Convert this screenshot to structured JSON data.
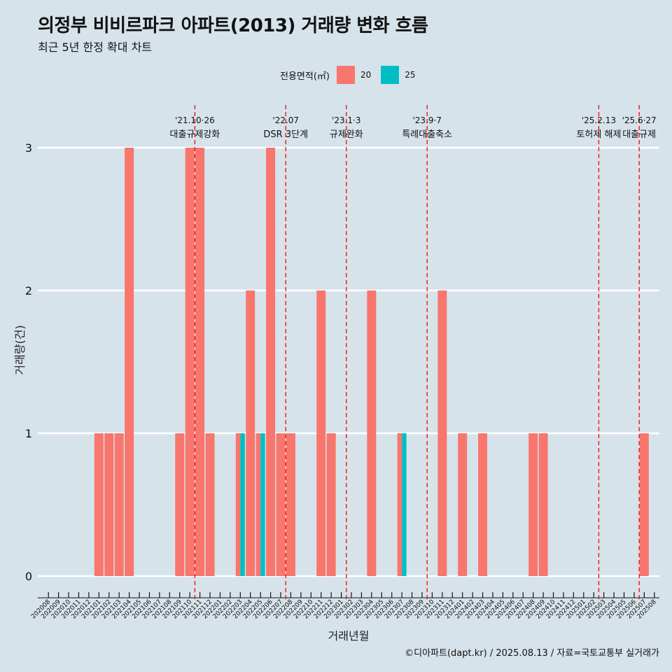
{
  "header": {
    "title": "의정부 비비르파크 아파트(2013) 거래량 변화 흐름",
    "subtitle": "최근 5년 한정 확대 차트"
  },
  "legend": {
    "title": "전용면적(㎡)",
    "items": [
      {
        "label": "20",
        "color": "#f8766d"
      },
      {
        "label": "25",
        "color": "#00bfc4"
      }
    ]
  },
  "caption": "©디아파트(dapt.kr) / 2025.08.13 / 자료=국토교통부 실거래가",
  "chart_data": {
    "type": "bar",
    "xlabel": "거래년월",
    "ylabel": "거래량(건)",
    "ylim": [
      0,
      3
    ],
    "yticks": [
      0,
      1,
      2,
      3
    ],
    "grid": true,
    "legend_position": "top",
    "categories": [
      "202008",
      "202009",
      "202010",
      "202011",
      "202012",
      "202101",
      "202102",
      "202103",
      "202104",
      "202105",
      "202106",
      "202107",
      "202108",
      "202109",
      "202110",
      "202111",
      "202112",
      "202201",
      "202202",
      "202203",
      "202204",
      "202205",
      "202206",
      "202207",
      "202208",
      "202209",
      "202210",
      "202211",
      "202212",
      "202301",
      "202302",
      "202303",
      "202304",
      "202305",
      "202306",
      "202307",
      "202308",
      "202309",
      "202310",
      "202311",
      "202312",
      "202401",
      "202402",
      "202403",
      "202404",
      "202405",
      "202406",
      "202407",
      "202408",
      "202409",
      "202410",
      "202411",
      "202412",
      "202501",
      "202502",
      "202503",
      "202504",
      "202505",
      "202506",
      "202507",
      "202508"
    ],
    "series": [
      {
        "name": "20",
        "color": "#f8766d",
        "values": [
          0,
          0,
          0,
          0,
          0,
          1,
          1,
          1,
          3,
          0,
          0,
          0,
          0,
          1,
          3,
          3,
          1,
          0,
          0,
          1,
          2,
          1,
          3,
          1,
          1,
          0,
          0,
          2,
          1,
          0,
          0,
          0,
          2,
          0,
          0,
          1,
          0,
          0,
          0,
          2,
          0,
          1,
          0,
          1,
          0,
          0,
          0,
          0,
          1,
          1,
          0,
          0,
          0,
          0,
          0,
          0,
          0,
          0,
          0,
          1,
          0
        ]
      },
      {
        "name": "25",
        "color": "#00bfc4",
        "values": [
          0,
          0,
          0,
          0,
          0,
          0,
          0,
          0,
          0,
          0,
          0,
          0,
          0,
          0,
          0,
          0,
          0,
          0,
          0,
          1,
          0,
          1,
          0,
          0,
          0,
          0,
          0,
          0,
          0,
          0,
          0,
          0,
          0,
          0,
          0,
          1,
          0,
          0,
          0,
          0,
          0,
          0,
          0,
          0,
          0,
          0,
          0,
          0,
          0,
          0,
          0,
          0,
          0,
          0,
          0,
          0,
          0,
          0,
          0,
          0,
          0
        ]
      }
    ],
    "events": [
      {
        "x": 14.5,
        "date": "'21.10·26",
        "text": "대출규제강화"
      },
      {
        "x": 23.5,
        "date": "'22.07",
        "text": "DSR 3단계"
      },
      {
        "x": 29.5,
        "date": "'23.1·3",
        "text": "규제완화"
      },
      {
        "x": 37.5,
        "date": "'23.9·7",
        "text": "특례대출축소"
      },
      {
        "x": 54.5,
        "date": "'25.2.13",
        "text": "토허제 해제"
      },
      {
        "x": 58.5,
        "date": "'25.6·27",
        "text": "대출규제"
      }
    ]
  }
}
